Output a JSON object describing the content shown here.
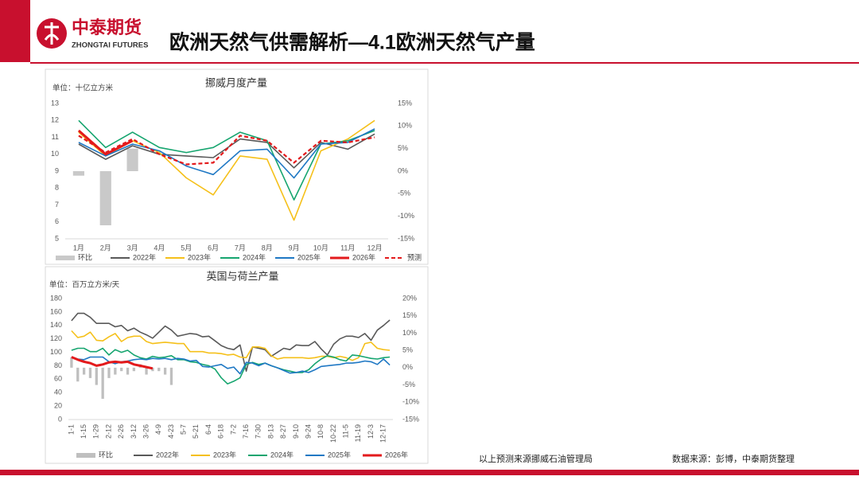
{
  "header": {
    "brand": "中泰期货",
    "brand_en": "ZHONGTAI FUTURES",
    "title": "欧洲天然气供需解析—4.1欧洲天然气产量"
  },
  "footer": {
    "note": "以上预测来源挪威石油管理局",
    "source": "数据来源：彭博，中泰期货整理"
  },
  "chart_data": [
    {
      "type": "line",
      "title": "挪威月度产量",
      "y_label": "单位：十亿立方米",
      "categories": [
        "1月",
        "2月",
        "3月",
        "4月",
        "5月",
        "6月",
        "7月",
        "8月",
        "9月",
        "10月",
        "11月",
        "12月"
      ],
      "ylim": [
        5,
        13
      ],
      "yticks": [
        5,
        6,
        7,
        8,
        9,
        10,
        11,
        12,
        13
      ],
      "y2lim": [
        -15,
        15
      ],
      "y2ticks": [
        {
          "value": -15,
          "label": "-15%"
        },
        {
          "value": -10,
          "label": "-10%"
        },
        {
          "value": -5,
          "label": "-5%"
        },
        {
          "value": 0,
          "label": "0%"
        },
        {
          "value": 5,
          "label": "5%"
        },
        {
          "value": 10,
          "label": "10%"
        },
        {
          "value": 15,
          "label": "15%"
        }
      ],
      "series": [
        {
          "name": "环比",
          "kind": "bar",
          "axis": "y2",
          "color": "#c9c9c9",
          "values": [
            -1,
            -12,
            5,
            null,
            null,
            null,
            null,
            null,
            null,
            null,
            null,
            null
          ]
        },
        {
          "name": "2022年",
          "color": "#595959",
          "values": [
            10.6,
            9.7,
            10.5,
            10.0,
            9.9,
            9.8,
            10.9,
            10.7,
            9.2,
            10.7,
            10.3,
            11.2
          ]
        },
        {
          "name": "2023年",
          "color": "#f5c01a",
          "values": [
            11.3,
            9.9,
            10.8,
            10.1,
            8.6,
            7.6,
            9.9,
            9.7,
            6.1,
            10.2,
            10.9,
            12.0
          ]
        },
        {
          "name": "2024年",
          "color": "#16a56f",
          "values": [
            12.0,
            10.4,
            11.3,
            10.4,
            10.1,
            10.4,
            11.3,
            10.8,
            7.3,
            10.6,
            10.8,
            11.4
          ]
        },
        {
          "name": "2025年",
          "color": "#1f78c4",
          "values": [
            10.7,
            9.9,
            10.6,
            10.2,
            9.3,
            8.8,
            10.2,
            10.3,
            8.6,
            10.6,
            10.7,
            11.5
          ]
        },
        {
          "name": "2026年",
          "color": "#e31a1c",
          "width": 3,
          "values": [
            11.4,
            10.0,
            10.8,
            null,
            null,
            null,
            null,
            null,
            null,
            null,
            null,
            null
          ]
        },
        {
          "name": "预测",
          "color": "#e31a1c",
          "style": "dashed",
          "values": [
            11.1,
            10.1,
            10.9,
            10.0,
            9.4,
            9.5,
            11.1,
            10.8,
            9.5,
            10.8,
            10.7,
            11.0
          ]
        }
      ]
    },
    {
      "type": "line",
      "title": "英国与荷兰产量",
      "y_label": "单位：百万立方米/天",
      "categories": [
        "1-1",
        null,
        "1-15",
        null,
        "1-29",
        null,
        "2-12",
        null,
        "2-26",
        null,
        "3-12",
        null,
        "3-26",
        null,
        "4-9",
        null,
        "4-23",
        null,
        "5-7",
        null,
        "5-21",
        null,
        "6-4",
        null,
        "6-18",
        null,
        "7-2",
        null,
        "7-16",
        null,
        "7-30",
        null,
        "8-13",
        null,
        "8-27",
        null,
        "9-10",
        null,
        "9-24",
        null,
        "10-8",
        null,
        "10-22",
        null,
        "11-5",
        null,
        "11-19",
        null,
        "12-3",
        null,
        "12-17",
        null
      ],
      "ylim": [
        0,
        180
      ],
      "yticks": [
        0,
        20,
        40,
        60,
        80,
        100,
        120,
        140,
        160,
        180
      ],
      "y2lim": [
        -15,
        20
      ],
      "y2ticks": [
        {
          "value": -15,
          "label": "-15%"
        },
        {
          "value": -10,
          "label": "-10%"
        },
        {
          "value": -5,
          "label": "-5%"
        },
        {
          "value": 0,
          "label": "0%"
        },
        {
          "value": 5,
          "label": "5%"
        },
        {
          "value": 10,
          "label": "10%"
        },
        {
          "value": 15,
          "label": "15%"
        },
        {
          "value": 20,
          "label": "20%"
        }
      ],
      "series": [
        {
          "name": "环比",
          "kind": "bar",
          "axis": "y2",
          "color": "#bfbfbf",
          "values": [
            3,
            -4,
            -2,
            -3,
            -5,
            -9,
            -3,
            -2,
            -1,
            -2,
            -1,
            1,
            -2,
            -1,
            -1,
            -2,
            -5,
            null,
            null,
            null,
            null,
            null,
            null,
            null,
            null,
            null,
            null,
            null,
            null,
            null,
            null,
            null,
            null,
            null,
            null,
            null,
            null,
            null,
            null,
            null,
            null,
            null,
            null,
            null,
            null,
            null,
            null,
            null,
            null,
            null,
            null,
            null
          ]
        },
        {
          "name": "2022年",
          "color": "#595959",
          "values": [
            147,
            158,
            158,
            152,
            143,
            143,
            143,
            138,
            140,
            132,
            136,
            130,
            126,
            121,
            130,
            139,
            133,
            124,
            126,
            128,
            127,
            123,
            124,
            117,
            110,
            106,
            104,
            111,
            72,
            108,
            106,
            104,
            94,
            100,
            106,
            104,
            111,
            110,
            110,
            116,
            105,
            96,
            112,
            120,
            124,
            124,
            122,
            128,
            118,
            133,
            140,
            148
          ]
        },
        {
          "name": "2023年",
          "color": "#f5c01a",
          "values": [
            132,
            122,
            124,
            130,
            118,
            117,
            123,
            128,
            116,
            122,
            124,
            124,
            116,
            113,
            114,
            115,
            114,
            113,
            113,
            101,
            101,
            101,
            99,
            99,
            98,
            96,
            97,
            93,
            92,
            108,
            108,
            106,
            95,
            90,
            92,
            92,
            92,
            92,
            91,
            92,
            94,
            94,
            92,
            94,
            92,
            88,
            92,
            113,
            115,
            106,
            104,
            103
          ]
        },
        {
          "name": "2024年",
          "color": "#16a56f",
          "values": [
            103,
            106,
            106,
            101,
            101,
            106,
            96,
            104,
            100,
            103,
            96,
            92,
            90,
            94,
            92,
            93,
            95,
            89,
            89,
            86,
            85,
            82,
            80,
            75,
            62,
            53,
            57,
            62,
            82,
            85,
            82,
            84,
            80,
            77,
            74,
            72,
            70,
            70,
            74,
            83,
            90,
            95,
            93,
            89,
            87,
            96,
            95,
            93,
            91,
            90,
            92,
            93
          ]
        },
        {
          "name": "2025年",
          "color": "#1f78c4",
          "values": [
            93,
            90,
            89,
            93,
            93,
            93,
            86,
            83,
            86,
            87,
            89,
            90,
            89,
            91,
            90,
            91,
            89,
            91,
            90,
            87,
            88,
            79,
            78,
            80,
            82,
            76,
            78,
            68,
            85,
            84,
            80,
            84,
            80,
            77,
            73,
            69,
            70,
            72,
            70,
            74,
            79,
            80,
            81,
            82,
            84,
            84,
            85,
            87,
            86,
            82,
            90,
            81
          ]
        },
        {
          "name": "2026年",
          "color": "#e31a1c",
          "width": 3,
          "values": [
            93,
            89,
            86,
            84,
            80,
            82,
            85,
            86,
            85,
            86,
            82,
            80,
            78,
            76,
            null,
            null,
            null,
            null,
            null,
            null,
            null,
            null,
            null,
            null,
            null,
            null,
            null,
            null,
            null,
            null,
            null,
            null,
            null,
            null,
            null,
            null,
            null,
            null,
            null,
            null,
            null,
            null,
            null,
            null,
            null,
            null,
            null,
            null,
            null,
            null,
            null,
            null
          ]
        }
      ]
    }
  ]
}
